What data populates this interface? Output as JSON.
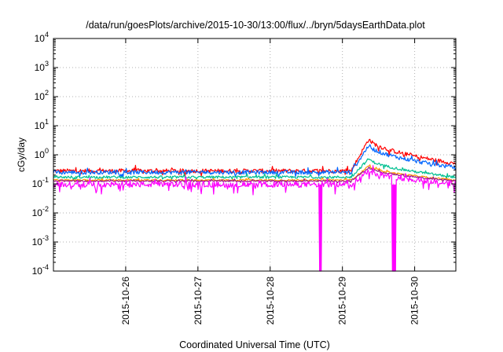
{
  "chart_data": {
    "type": "line",
    "title": "/data/run/goesPlots/archive/2015-10-30/13:00/flux/../bryn/5daysEarthData.plot",
    "xlabel": "Coordinated Universal Time (UTC)",
    "ylabel": "cGy/day",
    "yscale": "log",
    "ylim": [
      0.0001,
      10000
    ],
    "y_ticks": [
      {
        "value": 0.0001,
        "base": "10",
        "exp": "-4"
      },
      {
        "value": 0.001,
        "base": "10",
        "exp": "-3"
      },
      {
        "value": 0.01,
        "base": "10",
        "exp": "-2"
      },
      {
        "value": 0.1,
        "base": "10",
        "exp": "-1"
      },
      {
        "value": 1,
        "base": "10",
        "exp": "0"
      },
      {
        "value": 10,
        "base": "10",
        "exp": "1"
      },
      {
        "value": 100,
        "base": "10",
        "exp": "2"
      },
      {
        "value": 1000,
        "base": "10",
        "exp": "3"
      },
      {
        "value": 10000,
        "base": "10",
        "exp": "4"
      }
    ],
    "xlim_days": [
      -1.0,
      4.57
    ],
    "x_ticks": [
      {
        "value": 0,
        "label": "2015-10-26"
      },
      {
        "value": 1,
        "label": "2015-10-27"
      },
      {
        "value": 2,
        "label": "2015-10-28"
      },
      {
        "value": 3,
        "label": "2015-10-29"
      },
      {
        "value": 4,
        "label": "2015-10-30"
      }
    ],
    "grid": true,
    "events": {
      "rise_start_day": 3.12,
      "peak_day": 3.37,
      "dropouts": [
        {
          "series": "magenta",
          "start_day": 2.68,
          "end_day": 2.71
        },
        {
          "series": "magenta",
          "start_day": 3.69,
          "end_day": 3.74
        }
      ]
    },
    "series": [
      {
        "name": "red",
        "color": "#ff0000",
        "base": 0.28,
        "peak": 3.6,
        "end": 0.5,
        "noise": 0.16
      },
      {
        "name": "blue",
        "color": "#0066ff",
        "base": 0.25,
        "peak": 2.2,
        "end": 0.36,
        "noise": 0.16
      },
      {
        "name": "green",
        "color": "#00c090",
        "base": 0.17,
        "peak": 0.75,
        "end": 0.17,
        "noise": 0.1
      },
      {
        "name": "orange",
        "color": "#ff9900",
        "base": 0.135,
        "peak": 0.42,
        "end": 0.135,
        "noise": 0.06
      },
      {
        "name": "purple",
        "color": "#9a1a8a",
        "base": 0.125,
        "peak": 0.37,
        "end": 0.125,
        "noise": 0.06
      },
      {
        "name": "magenta",
        "color": "#ff00ff",
        "base": 0.095,
        "peak": 0.3,
        "end": 0.1,
        "noise": 0.22
      }
    ]
  }
}
